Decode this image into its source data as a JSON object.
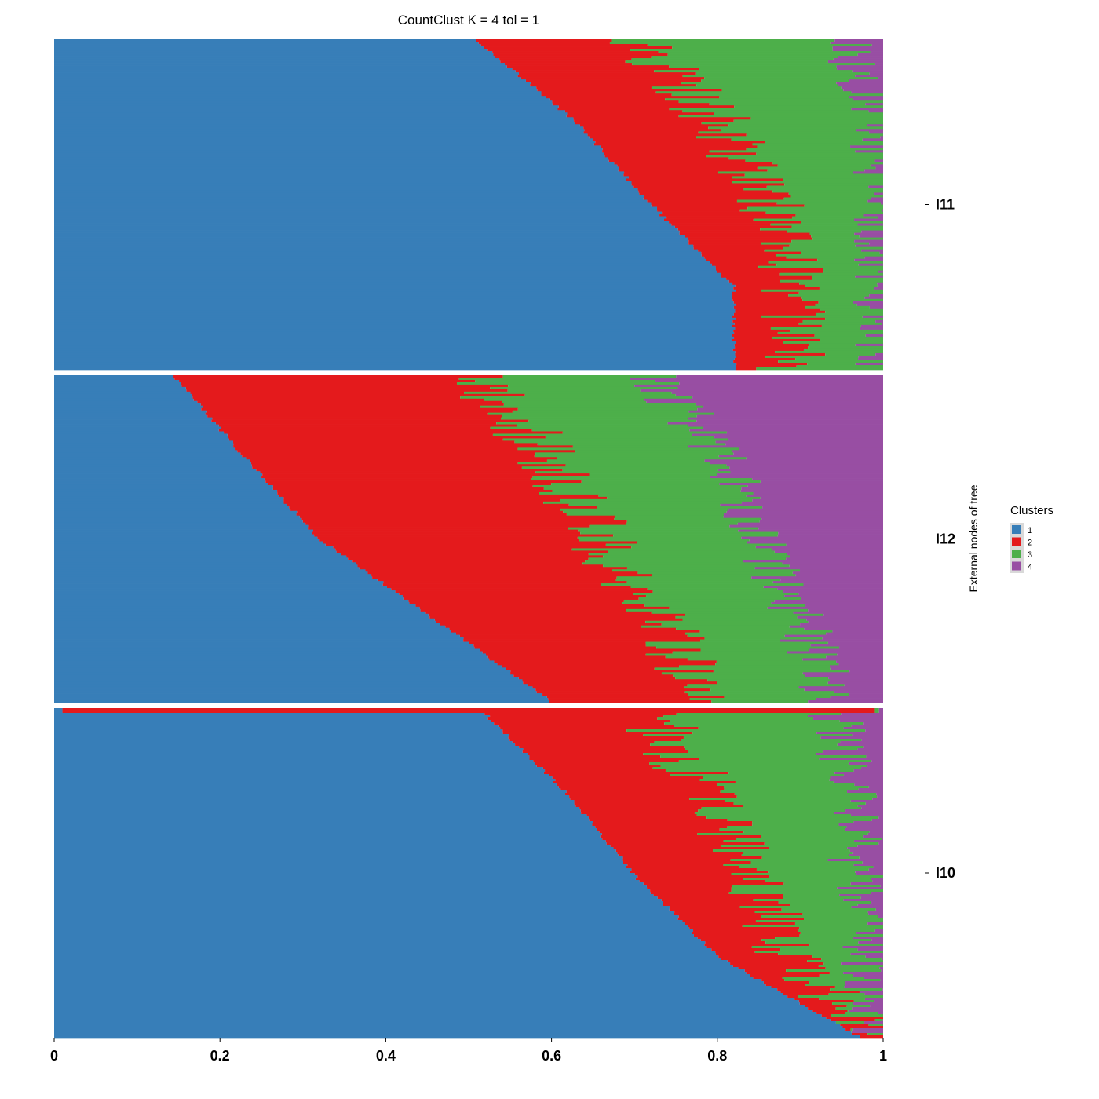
{
  "chart_data": {
    "type": "bar",
    "orientation": "horizontal",
    "stacked": true,
    "title": "CountClust K =  4 tol =  1",
    "xlabel": "",
    "ylabel": "External nodes of tree",
    "xlim": [
      0,
      1
    ],
    "x_ticks": [
      "0",
      "0.2",
      "0.4",
      "0.6",
      "0.8",
      "1"
    ],
    "grid": false,
    "legend": {
      "title": "Clusters",
      "position": "right",
      "entries": [
        {
          "label": "1",
          "color": "#377EB8"
        },
        {
          "label": "2",
          "color": "#E41A1C"
        },
        {
          "label": "3",
          "color": "#4DAF4A"
        },
        {
          "label": "4",
          "color": "#984EA3"
        }
      ]
    },
    "panels": [
      {
        "label": "I11",
        "n_samples": 140,
        "cumulative_profile": {
          "row_fraction": [
            0,
            0.25,
            0.5,
            0.75,
            1
          ],
          "cluster1_end": [
            0.51,
            0.63,
            0.72,
            0.82,
            0.82
          ],
          "cluster2_end": [
            0.71,
            0.8,
            0.86,
            0.89,
            0.89
          ],
          "cluster3_end": [
            0.96,
            0.99,
            1.0,
            0.995,
            0.995
          ]
        }
      },
      {
        "label": "I12",
        "n_samples": 140,
        "cumulative_profile": {
          "row_fraction": [
            0,
            0.25,
            0.5,
            0.75,
            1
          ],
          "cluster1_end": [
            0.145,
            0.23,
            0.32,
            0.46,
            0.6
          ],
          "cluster2_end": [
            0.5,
            0.6,
            0.66,
            0.73,
            0.78
          ],
          "cluster3_end": [
            0.72,
            0.81,
            0.85,
            0.9,
            0.94
          ]
        }
      },
      {
        "label": "I10",
        "n_samples": 140,
        "outlier_top_rows": [
          {
            "c1": 0.01,
            "c2": 0.98,
            "c3": 0.005
          },
          {
            "c1": 0.01,
            "c2": 0.98,
            "c3": 0.005
          }
        ],
        "cumulative_profile": {
          "row_fraction": [
            0,
            0.25,
            0.5,
            0.75,
            1
          ],
          "cluster1_end": [
            0.52,
            0.62,
            0.7,
            0.8,
            0.97
          ],
          "cluster2_end": [
            0.72,
            0.79,
            0.84,
            0.88,
            0.99
          ],
          "cluster3_end": [
            0.94,
            0.96,
            0.97,
            0.98,
            0.998
          ]
        }
      }
    ]
  }
}
